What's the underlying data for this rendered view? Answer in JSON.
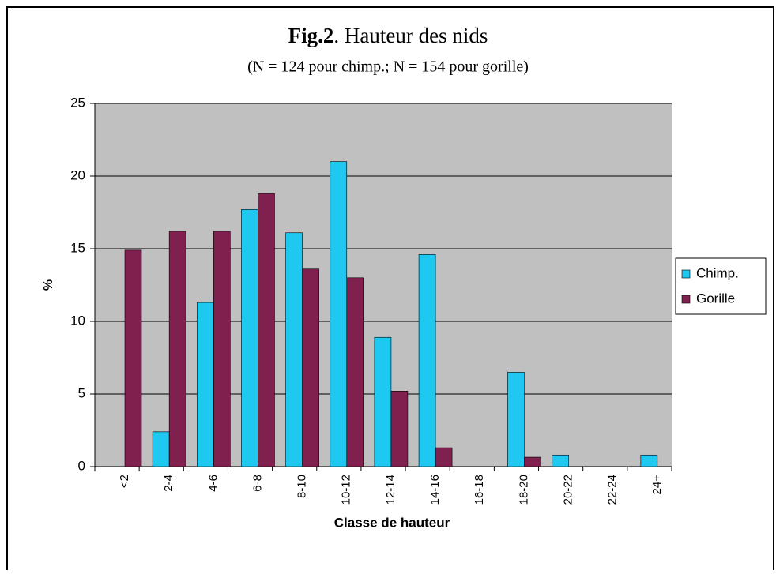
{
  "chart_data": {
    "type": "bar",
    "title_bold": "Fig.2",
    "title": ". Hauteur des nids",
    "subtitle": "(N = 124 pour chimp.; N = 154 pour gorille)",
    "y_label": "%",
    "x_label": "Classe de hauteur",
    "categories": [
      "<2",
      "2-4",
      "4-6",
      "6-8",
      "8-10",
      "10-12",
      "12-14",
      "14-16",
      "16-18",
      "18-20",
      "20-22",
      "22-24",
      "24+"
    ],
    "series": [
      {
        "name": "Chimp.",
        "color": "#1ec8f0",
        "values": [
          0,
          2.4,
          11.3,
          17.7,
          16.1,
          21,
          8.9,
          14.6,
          0,
          6.5,
          0.8,
          0,
          0.8
        ]
      },
      {
        "name": "Gorille",
        "color": "#80204f",
        "values": [
          14.9,
          16.2,
          16.2,
          18.8,
          13.6,
          13,
          5.2,
          1.3,
          0,
          0.65,
          0,
          0,
          0
        ]
      }
    ],
    "ylim": [
      0,
      25
    ],
    "yticks": [
      0,
      5,
      10,
      15,
      20,
      25
    ],
    "grid": true,
    "legend": "right"
  }
}
